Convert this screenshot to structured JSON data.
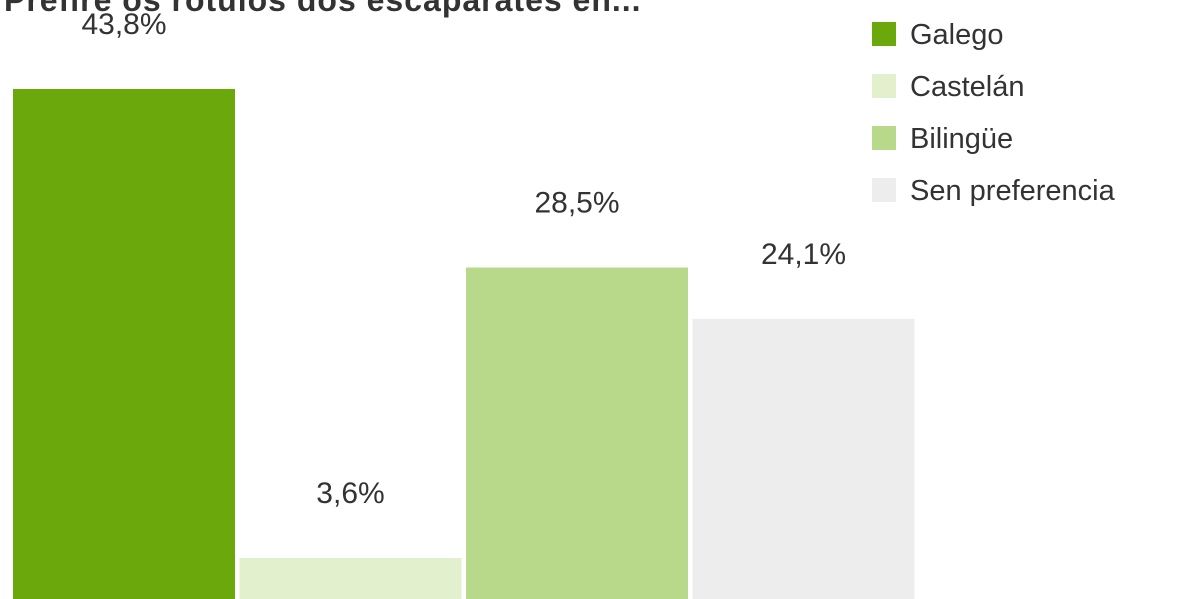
{
  "chart_data": {
    "type": "bar",
    "title": "Prefire os rótulos dos escaparates en...",
    "categories": [
      "Galego",
      "Castelán",
      "Bilingüe",
      "Sen preferencia"
    ],
    "values": [
      43.8,
      3.6,
      28.5,
      24.1
    ],
    "value_labels": [
      "43,8%",
      "3,6%",
      "28,5%",
      "24,1%"
    ],
    "colors": [
      "#6aa80c",
      "#e2f0ce",
      "#b8d98a",
      "#ededed"
    ],
    "ylim": [
      0,
      48
    ],
    "legend": {
      "placement": "top-right",
      "entries": [
        "Galego",
        "Castelán",
        "Bilingüe",
        "Sen preferencia"
      ]
    },
    "grid": false
  }
}
